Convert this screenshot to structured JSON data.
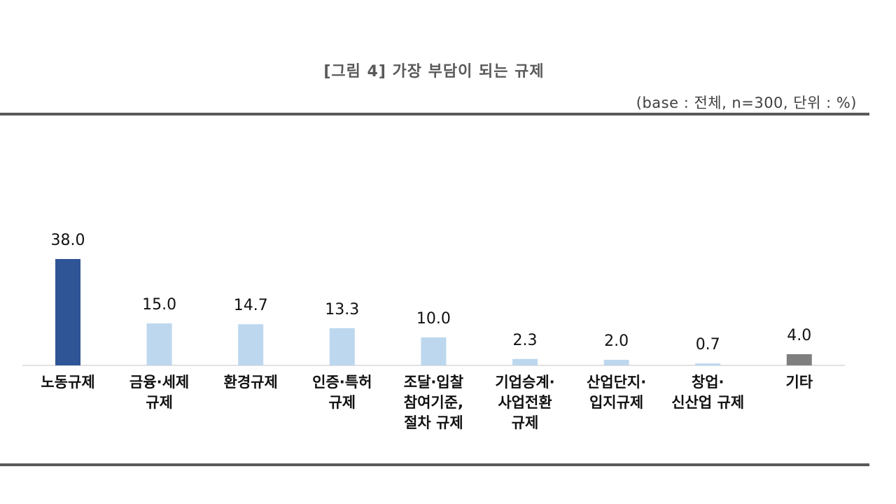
{
  "chart_data": {
    "type": "bar",
    "title": "[그림 4] 가장 부담이 되는 규제",
    "subtitle": "(base : 전체, n=300, 단위 : %)",
    "categories": [
      "노동규제",
      "금융·세제 규제",
      "환경규제",
      "인증·특허 규제",
      "조달·입찰 참여기준, 절차 규제",
      "기업승계·사업전환 규제",
      "산업단지·입지규제",
      "창업·신산업 규제",
      "기타"
    ],
    "category_lines": [
      [
        "노동규제"
      ],
      [
        "금융·세제",
        "규제"
      ],
      [
        "환경규제"
      ],
      [
        "인증·특허",
        "규제"
      ],
      [
        "조달·입찰",
        "참여기준,",
        "절차 규제"
      ],
      [
        "기업승계·",
        "사업전환",
        "규제"
      ],
      [
        "산업단지·",
        "입지규제"
      ],
      [
        "창업·",
        "신산업 규제"
      ],
      [
        "기타"
      ]
    ],
    "values": [
      38.0,
      15.0,
      14.7,
      13.3,
      10.0,
      2.3,
      2.0,
      0.7,
      4.0
    ],
    "value_labels": [
      "38.0",
      "15.0",
      "14.7",
      "13.3",
      "10.0",
      "2.3",
      "2.0",
      "0.7",
      "4.0"
    ],
    "colors": [
      "#2f5597",
      "#bdd7ee",
      "#bdd7ee",
      "#bdd7ee",
      "#bdd7ee",
      "#bdd7ee",
      "#bdd7ee",
      "#bdd7ee",
      "#7f7f7f"
    ],
    "xlabel": "",
    "ylabel": "",
    "ylim": [
      0,
      40
    ],
    "grid": false,
    "legend": "none"
  }
}
